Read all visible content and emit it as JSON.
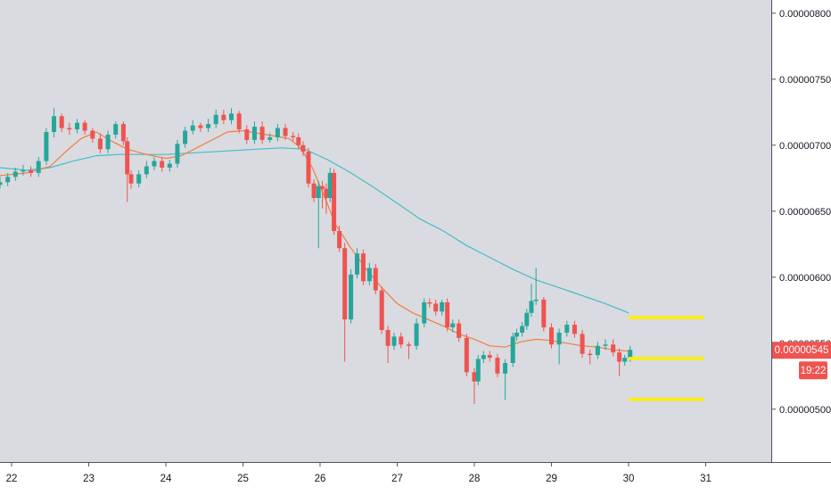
{
  "chart_data": {
    "type": "candlestick",
    "title": "",
    "xlabel": "",
    "ylabel": "",
    "grid": false,
    "legend": "none",
    "x_ticks": [
      "22",
      "23",
      "24",
      "25",
      "26",
      "27",
      "28",
      "29",
      "30",
      "31"
    ],
    "x_range": [
      21.85,
      31.85
    ],
    "y_ticks": [
      "0.00000500",
      "0.00000550",
      "0.00000600",
      "0.00000650",
      "0.00000700",
      "0.00000750",
      "0.00000800"
    ],
    "y_range": [
      4.6e-06,
      8.1e-06
    ],
    "colors": {
      "up": "#26a69a",
      "down": "#ef5350",
      "ma_fast": "#f57c3d",
      "ma_slow": "#45bdc7",
      "levels": "#ffee00",
      "price_badge": "#ef5350",
      "background": "#d9dbe0"
    },
    "last_price": {
      "label": "0.00000545",
      "countdown": "19:22",
      "value": 5.45e-06
    },
    "price_levels": [
      {
        "value": 5.695e-06,
        "x_start": 30.0,
        "x_end": 30.98
      },
      {
        "value": 5.385e-06,
        "x_start": 30.0,
        "x_end": 30.98
      },
      {
        "value": 5.075e-06,
        "x_start": 30.0,
        "x_end": 30.98
      }
    ],
    "ma_fast_series": {
      "x": [
        21.85,
        22.2,
        22.5,
        22.7,
        22.9,
        23.1,
        23.3,
        23.5,
        23.75,
        24.0,
        24.2,
        24.4,
        24.6,
        24.8,
        25.0,
        25.2,
        25.4,
        25.6,
        25.75,
        25.9,
        26.05,
        26.2,
        26.4,
        26.6,
        26.8,
        27.0,
        27.2,
        27.4,
        27.6,
        27.8,
        28.0,
        28.2,
        28.4,
        28.6,
        28.8,
        29.0,
        29.2,
        29.4,
        29.6,
        29.8,
        30.0
      ],
      "y": [
        6.77e-06,
        6.79e-06,
        6.84e-06,
        6.95e-06,
        7.05e-06,
        7.1e-06,
        7.03e-06,
        6.97e-06,
        6.93e-06,
        6.9e-06,
        6.92e-06,
        6.98e-06,
        7.04e-06,
        7.1e-06,
        7.11e-06,
        7.09e-06,
        7.07e-06,
        7.05e-06,
        6.98e-06,
        6.83e-06,
        6.62e-06,
        6.4e-06,
        6.22e-06,
        6.06e-06,
        5.92e-06,
        5.8e-06,
        5.73e-06,
        5.68e-06,
        5.63e-06,
        5.57e-06,
        5.53e-06,
        5.48e-06,
        5.47e-06,
        5.51e-06,
        5.53e-06,
        5.52e-06,
        5.5e-06,
        5.48e-06,
        5.47e-06,
        5.45e-06,
        5.44e-06
      ]
    },
    "ma_slow_series": {
      "x": [
        21.85,
        22.2,
        22.5,
        22.8,
        23.1,
        23.4,
        23.7,
        24.0,
        24.3,
        24.6,
        24.9,
        25.2,
        25.5,
        25.8,
        26.1,
        26.4,
        26.7,
        27.0,
        27.3,
        27.6,
        27.9,
        28.2,
        28.5,
        28.8,
        29.1,
        29.4,
        29.7,
        30.0
      ],
      "y": [
        6.83e-06,
        6.81e-06,
        6.83e-06,
        6.88e-06,
        6.92e-06,
        6.93e-06,
        6.93e-06,
        6.93e-06,
        6.94e-06,
        6.95e-06,
        6.96e-06,
        6.97e-06,
        6.98e-06,
        6.97e-06,
        6.89e-06,
        6.79e-06,
        6.68e-06,
        6.56e-06,
        6.44e-06,
        6.35e-06,
        6.24e-06,
        6.15e-06,
        6.06e-06,
        5.98e-06,
        5.92e-06,
        5.86e-06,
        5.8e-06,
        5.73e-06
      ]
    },
    "candles": {
      "x": [
        21.85,
        21.95,
        22.05,
        22.15,
        22.25,
        22.35,
        22.45,
        22.55,
        22.65,
        22.75,
        22.85,
        22.95,
        23.05,
        23.15,
        23.25,
        23.35,
        23.45,
        23.5,
        23.55,
        23.65,
        23.75,
        23.85,
        23.95,
        24.05,
        24.15,
        24.25,
        24.35,
        24.45,
        24.55,
        24.65,
        24.75,
        24.85,
        24.95,
        25.05,
        25.15,
        25.25,
        25.35,
        25.45,
        25.55,
        25.65,
        25.72,
        25.78,
        25.85,
        25.92,
        25.98,
        26.03,
        26.08,
        26.13,
        26.18,
        26.25,
        26.32,
        26.4,
        26.48,
        26.56,
        26.64,
        26.72,
        26.8,
        26.88,
        26.96,
        27.05,
        27.15,
        27.25,
        27.35,
        27.42,
        27.5,
        27.58,
        27.65,
        27.72,
        27.8,
        27.9,
        28.0,
        28.05,
        28.12,
        28.2,
        28.3,
        28.4,
        28.5,
        28.55,
        28.62,
        28.68,
        28.74,
        28.8,
        28.9,
        29.0,
        29.1,
        29.2,
        29.3,
        29.4,
        29.5,
        29.6,
        29.7,
        29.8,
        29.88,
        29.95,
        30.02
      ],
      "open": [
        6.7e-06,
        6.72e-06,
        6.76e-06,
        6.8e-06,
        6.81e-06,
        6.79e-06,
        6.88e-06,
        7.1e-06,
        7.22e-06,
        7.13e-06,
        7.12e-06,
        7.17e-06,
        7.11e-06,
        7.05e-06,
        6.97e-06,
        7.08e-06,
        7.16e-06,
        7.03e-06,
        6.78e-06,
        6.71e-06,
        6.78e-06,
        6.84e-06,
        6.88e-06,
        6.83e-06,
        6.86e-06,
        7.01e-06,
        7.11e-06,
        7.15e-06,
        7.13e-06,
        7.16e-06,
        7.23e-06,
        7.19e-06,
        7.24e-06,
        7.12e-06,
        7.04e-06,
        7.14e-06,
        7.04e-06,
        7.06e-06,
        7.13e-06,
        7.07e-06,
        7.06e-06,
        7e-06,
        6.95e-06,
        6.71e-06,
        6.6e-06,
        6.69e-06,
        6.67e-06,
        6.6e-06,
        6.79e-06,
        6.35e-06,
        6.22e-06,
        5.68e-06,
        6.02e-06,
        6.18e-06,
        5.97e-06,
        6.07e-06,
        5.9e-06,
        5.6e-06,
        5.48e-06,
        5.55e-06,
        5.49e-06,
        5.48e-06,
        5.65e-06,
        5.81e-06,
        5.8e-06,
        5.74e-06,
        5.81e-06,
        5.62e-06,
        5.65e-06,
        5.54e-06,
        5.28e-06,
        5.21e-06,
        5.38e-06,
        5.41e-06,
        5.39e-06,
        5.27e-06,
        5.35e-06,
        5.55e-06,
        5.58e-06,
        5.63e-06,
        5.73e-06,
        5.82e-06,
        5.83e-06,
        5.62e-06,
        5.49e-06,
        5.58e-06,
        5.64e-06,
        5.57e-06,
        5.42e-06,
        5.41e-06,
        5.48e-06,
        5.49e-06,
        5.43e-06,
        5.36e-06,
        5.39e-06
      ],
      "close": [
        6.72e-06,
        6.76e-06,
        6.8e-06,
        6.81e-06,
        6.79e-06,
        6.88e-06,
        7.1e-06,
        7.22e-06,
        7.13e-06,
        7.12e-06,
        7.17e-06,
        7.11e-06,
        7.05e-06,
        6.97e-06,
        7.08e-06,
        7.16e-06,
        7.03e-06,
        6.78e-06,
        6.71e-06,
        6.78e-06,
        6.84e-06,
        6.88e-06,
        6.83e-06,
        6.86e-06,
        7.01e-06,
        7.11e-06,
        7.15e-06,
        7.13e-06,
        7.16e-06,
        7.23e-06,
        7.19e-06,
        7.24e-06,
        7.12e-06,
        7.04e-06,
        7.14e-06,
        7.04e-06,
        7.06e-06,
        7.13e-06,
        7.07e-06,
        7.06e-06,
        7e-06,
        6.95e-06,
        6.71e-06,
        6.6e-06,
        6.69e-06,
        6.67e-06,
        6.6e-06,
        6.79e-06,
        6.35e-06,
        6.22e-06,
        5.68e-06,
        6.02e-06,
        6.18e-06,
        5.97e-06,
        6.07e-06,
        5.9e-06,
        5.6e-06,
        5.48e-06,
        5.55e-06,
        5.49e-06,
        5.48e-06,
        5.65e-06,
        5.81e-06,
        5.8e-06,
        5.74e-06,
        5.81e-06,
        5.62e-06,
        5.65e-06,
        5.54e-06,
        5.28e-06,
        5.21e-06,
        5.38e-06,
        5.41e-06,
        5.39e-06,
        5.27e-06,
        5.35e-06,
        5.55e-06,
        5.58e-06,
        5.63e-06,
        5.73e-06,
        5.82e-06,
        5.83e-06,
        5.62e-06,
        5.49e-06,
        5.58e-06,
        5.64e-06,
        5.57e-06,
        5.42e-06,
        5.41e-06,
        5.48e-06,
        5.49e-06,
        5.43e-06,
        5.36e-06,
        5.39e-06,
        5.45e-06
      ],
      "high": [
        6.76e-06,
        6.79e-06,
        6.83e-06,
        6.85e-06,
        6.84e-06,
        6.91e-06,
        7.13e-06,
        7.28e-06,
        7.24e-06,
        7.17e-06,
        7.2e-06,
        7.19e-06,
        7.13e-06,
        7.09e-06,
        7.11e-06,
        7.18e-06,
        7.18e-06,
        7.06e-06,
        6.81e-06,
        6.81e-06,
        6.88e-06,
        6.91e-06,
        6.91e-06,
        6.89e-06,
        7.04e-06,
        7.14e-06,
        7.19e-06,
        7.17e-06,
        7.2e-06,
        7.27e-06,
        7.27e-06,
        7.28e-06,
        7.26e-06,
        7.15e-06,
        7.18e-06,
        7.18e-06,
        7.09e-06,
        7.16e-06,
        7.16e-06,
        7.1e-06,
        7.09e-06,
        7.03e-06,
        6.98e-06,
        6.74e-06,
        6.73e-06,
        6.73e-06,
        6.71e-06,
        6.83e-06,
        6.82e-06,
        6.39e-06,
        6.26e-06,
        6.06e-06,
        6.22e-06,
        6.21e-06,
        6.11e-06,
        6.1e-06,
        5.93e-06,
        5.63e-06,
        5.58e-06,
        5.58e-06,
        5.51e-06,
        5.69e-06,
        5.84e-06,
        5.84e-06,
        5.83e-06,
        5.83e-06,
        5.84e-06,
        5.68e-06,
        5.68e-06,
        5.57e-06,
        5.31e-06,
        5.41e-06,
        5.44e-06,
        5.44e-06,
        5.42e-06,
        5.38e-06,
        5.58e-06,
        5.61e-06,
        5.66e-06,
        5.76e-06,
        5.95e-06,
        6.07e-06,
        5.85e-06,
        5.65e-06,
        5.61e-06,
        5.67e-06,
        5.67e-06,
        5.6e-06,
        5.45e-06,
        5.51e-06,
        5.53e-06,
        5.53e-06,
        5.46e-06,
        5.41e-06,
        5.48e-06
      ],
      "low": [
        6.67e-06,
        6.69e-06,
        6.73e-06,
        6.77e-06,
        6.76e-06,
        6.76e-06,
        6.85e-06,
        7.06e-06,
        7.1e-06,
        7.08e-06,
        7.09e-06,
        7.08e-06,
        7.02e-06,
        6.94e-06,
        6.94e-06,
        7.05e-06,
        7e-06,
        6.57e-06,
        6.67e-06,
        6.68e-06,
        6.75e-06,
        6.81e-06,
        6.8e-06,
        6.8e-06,
        6.83e-06,
        6.98e-06,
        7.08e-06,
        7.1e-06,
        7.1e-06,
        7.13e-06,
        7.16e-06,
        7.16e-06,
        7.09e-06,
        7.01e-06,
        7.01e-06,
        7.01e-06,
        7.02e-06,
        7.03e-06,
        7.04e-06,
        7.03e-06,
        6.97e-06,
        6.92e-06,
        6.68e-06,
        6.57e-06,
        6.22e-06,
        6.52e-06,
        6.48e-06,
        6.57e-06,
        6.32e-06,
        6.19e-06,
        5.36e-06,
        5.65e-06,
        5.99e-06,
        5.94e-06,
        5.94e-06,
        5.87e-06,
        5.57e-06,
        5.35e-06,
        5.45e-06,
        5.46e-06,
        5.38e-06,
        5.45e-06,
        5.62e-06,
        5.77e-06,
        5.71e-06,
        5.71e-06,
        5.59e-06,
        5.58e-06,
        5.51e-06,
        5.25e-06,
        5.04e-06,
        5.18e-06,
        5.35e-06,
        5.36e-06,
        5.24e-06,
        5.07e-06,
        5.32e-06,
        5.52e-06,
        5.55e-06,
        5.6e-06,
        5.7e-06,
        5.79e-06,
        5.59e-06,
        5.46e-06,
        5.34e-06,
        5.55e-06,
        5.54e-06,
        5.39e-06,
        5.34e-06,
        5.38e-06,
        5.45e-06,
        5.4e-06,
        5.25e-06,
        5.33e-06,
        5.36e-06
      ]
    }
  }
}
